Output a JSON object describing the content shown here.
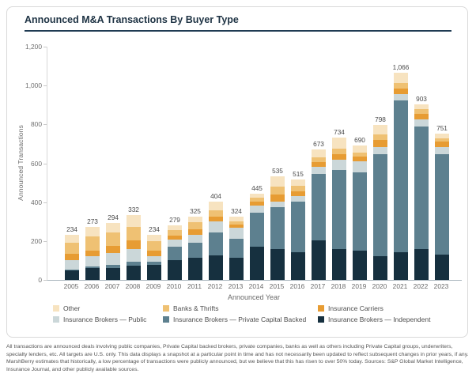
{
  "header": {
    "title": "Announced M&A Transactions By Buyer Type"
  },
  "chart_data": {
    "type": "bar",
    "stacked": true,
    "title": "Announced M&A Transactions By Buyer Type",
    "xlabel": "Announced Year",
    "ylabel": "Announced Transactions",
    "ylim": [
      0,
      1200
    ],
    "grid": false,
    "legend_position": "bottom",
    "y_tick_values": [
      0,
      200,
      400,
      600,
      800,
      1000,
      1200
    ],
    "y_tick_labels": [
      "0",
      "200",
      "400",
      "600",
      "800",
      "1,000",
      "1,200"
    ],
    "categories": [
      "2005",
      "2006",
      "2007",
      "2008",
      "2009",
      "2010",
      "2011",
      "2012",
      "2013",
      "2014",
      "2015",
      "2016",
      "2017",
      "2018",
      "2019",
      "2020",
      "2021",
      "2022",
      "2023"
    ],
    "totals": [
      234,
      273,
      294,
      332,
      234,
      279,
      325,
      404,
      324,
      445,
      535,
      515,
      673,
      734,
      690,
      798,
      1066,
      903,
      751
    ],
    "totals_display": [
      "234",
      "273",
      "294",
      "332",
      "234",
      "279",
      "325",
      "404",
      "324",
      "445",
      "535",
      "515",
      "673",
      "734",
      "690",
      "798",
      "1,066",
      "903",
      "751"
    ],
    "series": [
      {
        "name": "Insurance Brokers — Independent",
        "color": "#16303f",
        "values": [
          47,
          61,
          63,
          73,
          76,
          100,
          113,
          126,
          114,
          170,
          158,
          144,
          204,
          160,
          150,
          122,
          143,
          157,
          132
        ]
      },
      {
        "name": "Insurance Brokers — Private Capital Backed",
        "color": "#5d808f",
        "values": [
          8,
          8,
          16,
          19,
          17,
          70,
          77,
          117,
          96,
          177,
          218,
          259,
          341,
          405,
          403,
          524,
          779,
          633,
          514
        ]
      },
      {
        "name": "Insurance Brokers — Public",
        "color": "#cbd7d9",
        "values": [
          47,
          52,
          60,
          65,
          30,
          36,
          40,
          60,
          57,
          34,
          25,
          27,
          35,
          55,
          57,
          38,
          36,
          36,
          38
        ]
      },
      {
        "name": "Insurance Carriers",
        "color": "#e79c33",
        "values": [
          34,
          30,
          37,
          47,
          29,
          22,
          31,
          24,
          17,
          20,
          37,
          27,
          27,
          28,
          24,
          36,
          27,
          27,
          27
        ]
      },
      {
        "name": "Banks & Thrifts",
        "color": "#efc173",
        "values": [
          56,
          73,
          67,
          68,
          46,
          28,
          37,
          32,
          19,
          24,
          42,
          27,
          23,
          28,
          23,
          27,
          27,
          24,
          16
        ]
      },
      {
        "name": "Other",
        "color": "#f7e3c0",
        "values": [
          42,
          49,
          51,
          60,
          36,
          23,
          27,
          45,
          21,
          20,
          55,
          31,
          43,
          58,
          33,
          51,
          54,
          26,
          24
        ]
      }
    ]
  },
  "legend": {
    "items": [
      {
        "label": "Other",
        "color": "#f7e3c0"
      },
      {
        "label": "Banks & Thrifts",
        "color": "#efc173"
      },
      {
        "label": "Insurance Carriers",
        "color": "#e79c33"
      },
      {
        "label": "Insurance Brokers — Public",
        "color": "#cbd7d9"
      },
      {
        "label": "Insurance Brokers — Private Capital Backed",
        "color": "#5d808f"
      },
      {
        "label": "Insurance Brokers — Independent",
        "color": "#16303f"
      }
    ]
  },
  "footer": {
    "text": "All transactions are announced deals involving public companies, Private Capital backed brokers, private companies, banks as well as others including Private Capital groups, underwriters, specialty lenders, etc. All targets are U.S. only. This data displays a snapshot at a particular point in time and has not necessarily been updated to reflect subsequent changes in prior years, if any. MarshBerry estimates that historically, a low percentage of transactions were publicly announced, but we believe that this has risen to over 50% today. Sources: S&P Global Market Intelligence, Insurance Journal, and other publicly available sources."
  }
}
